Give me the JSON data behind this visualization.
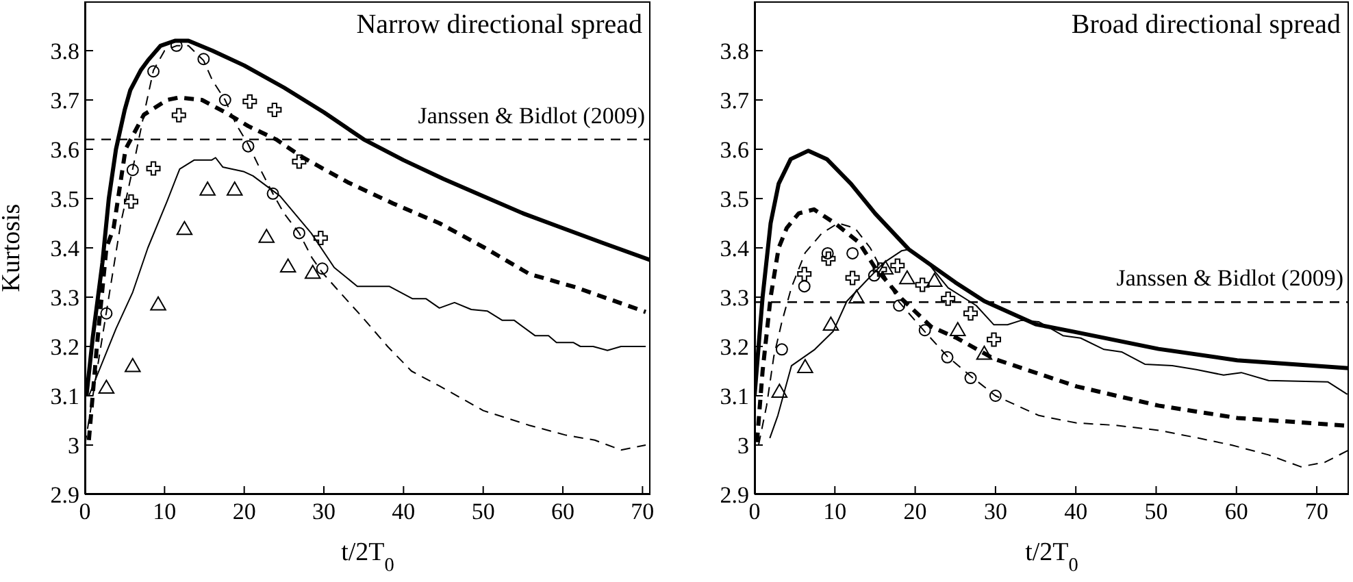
{
  "chart_data": [
    {
      "type": "line",
      "title": "Narrow directional spread",
      "xlabel": "t/2T$_{0}$",
      "ylabel": "Kurtosis",
      "xlim": [
        0,
        71
      ],
      "ylim": [
        2.9,
        3.9
      ],
      "xticks": [
        0,
        10,
        20,
        30,
        40,
        50,
        60,
        70
      ],
      "yticks": [
        2.9,
        3,
        3.1,
        3.2,
        3.3,
        3.4,
        3.5,
        3.6,
        3.7,
        3.8
      ],
      "ref_lines": [
        {
          "axis": "y",
          "value": 3.62,
          "label": "Janssen & Bidlot (2009)",
          "line_style": "dashed",
          "color": "#000000"
        }
      ],
      "series": [
        {
          "type": "line",
          "color": "#000000",
          "line_style": "solid",
          "marker": "none",
          "x": [
            0.2,
            1,
            2.2,
            3,
            3.9,
            5,
            5.7,
            7,
            7.9,
            9.5,
            11.3,
            13,
            16,
            20,
            25,
            30,
            35,
            40,
            45,
            50,
            55,
            60,
            65,
            71
          ],
          "values": [
            3.1,
            3.22,
            3.37,
            3.5,
            3.6,
            3.68,
            3.72,
            3.76,
            3.78,
            3.81,
            3.82,
            3.82,
            3.8,
            3.77,
            3.725,
            3.675,
            3.62,
            3.578,
            3.54,
            3.505,
            3.47,
            3.44,
            3.41,
            3.375
          ]
        },
        {
          "type": "line",
          "color": "#000000",
          "line_style": "dashed",
          "marker": "none",
          "x": [
            0.5,
            1.5,
            2.7,
            3.6,
            5.1,
            7.4,
            10.3,
            11.8,
            14.7,
            17.6,
            20.5,
            24,
            27.4,
            33,
            38.7,
            44.5,
            50.2,
            55.8,
            61.6,
            70.4
          ],
          "values": [
            3.01,
            3.2,
            3.4,
            3.44,
            3.6,
            3.67,
            3.7,
            3.705,
            3.7,
            3.675,
            3.647,
            3.62,
            3.583,
            3.533,
            3.49,
            3.45,
            3.4,
            3.347,
            3.32,
            3.27
          ]
        },
        {
          "type": "line",
          "color": "#000000",
          "line_style": "dashed",
          "marker": "none",
          "x": [
            0,
            1,
            2.7,
            4.5,
            6,
            7.4,
            8.6,
            10,
            11.5,
            13,
            14.9,
            16,
            17.6,
            19,
            20.5,
            22,
            23.6,
            25,
            26.9,
            28.5,
            29.8,
            32,
            34.8,
            38,
            41,
            44.5,
            50,
            55.8,
            60.4,
            64,
            67.3,
            70.4
          ],
          "values": [
            3.0,
            3.1,
            3.27,
            3.45,
            3.56,
            3.67,
            3.76,
            3.8,
            3.81,
            3.81,
            3.78,
            3.74,
            3.7,
            3.65,
            3.61,
            3.56,
            3.51,
            3.47,
            3.43,
            3.38,
            3.35,
            3.31,
            3.26,
            3.2,
            3.15,
            3.12,
            3.07,
            3.04,
            3.02,
            3.01,
            2.99,
            3.0
          ]
        },
        {
          "type": "line",
          "color": "#000000",
          "line_style": "solid",
          "marker": "none",
          "x": [
            0.5,
            3.9,
            6,
            7.9,
            10.3,
            11.9,
            13.7,
            15.9,
            16.4,
            17.3,
            19.9,
            21.1,
            24.5,
            28.4,
            31.3,
            34.2,
            38.2,
            41.1,
            42.8,
            44.5,
            46.4,
            48.5,
            50.5,
            52.4,
            53.9,
            56.5,
            58.2,
            59.2,
            61.3,
            62.2,
            63.8,
            65.6,
            67.3,
            70.4
          ],
          "values": [
            3.1,
            3.236,
            3.31,
            3.4,
            3.494,
            3.56,
            3.578,
            3.578,
            3.583,
            3.564,
            3.555,
            3.546,
            3.505,
            3.43,
            3.36,
            3.322,
            3.322,
            3.297,
            3.297,
            3.278,
            3.289,
            3.275,
            3.272,
            3.253,
            3.253,
            3.222,
            3.222,
            3.208,
            3.208,
            3.2,
            3.2,
            3.192,
            3.2,
            3.2
          ]
        },
        {
          "type": "scatter",
          "color": "#000000",
          "marker": "circle",
          "x": [
            2.7,
            6,
            8.6,
            11.5,
            14.9,
            17.6,
            20.5,
            23.6,
            26.9,
            29.8
          ],
          "values": [
            3.267,
            3.558,
            3.758,
            3.81,
            3.783,
            3.7,
            3.606,
            3.51,
            3.43,
            3.358
          ]
        },
        {
          "type": "scatter",
          "color": "#000000",
          "marker": "cross",
          "x": [
            5.8,
            8.6,
            11.8,
            20.7,
            23.8,
            26.9,
            29.6
          ],
          "values": [
            3.494,
            3.561,
            3.669,
            3.697,
            3.68,
            3.575,
            3.42
          ]
        },
        {
          "type": "scatter",
          "color": "#000000",
          "marker": "triangle",
          "x": [
            2.7,
            6,
            9.2,
            12.5,
            15.4,
            18.8,
            22.8,
            25.5,
            28.6
          ],
          "values": [
            3.114,
            3.158,
            3.283,
            3.436,
            3.516,
            3.516,
            3.42,
            3.36,
            3.347
          ]
        }
      ]
    },
    {
      "type": "line",
      "title": "Broad directional spread",
      "xlabel": "t/2T$_{0}$",
      "xlim": [
        0,
        74
      ],
      "ylim": [
        2.9,
        3.9
      ],
      "xticks": [
        0,
        10,
        20,
        30,
        40,
        50,
        60,
        70
      ],
      "yticks": [
        2.9,
        3,
        3.1,
        3.2,
        3.3,
        3.4,
        3.5,
        3.6,
        3.7,
        3.8
      ],
      "ref_lines": [
        {
          "axis": "y",
          "value": 3.29,
          "label": "Janssen & Bidlot (2009)",
          "line_style": "dashed",
          "color": "#000000"
        }
      ],
      "series": [
        {
          "type": "line",
          "color": "#000000",
          "line_style": "solid",
          "marker": "none",
          "x": [
            0,
            1,
            2,
            3,
            4.5,
            6.7,
            9,
            12,
            15,
            19.2,
            25,
            28.6,
            35,
            39.7,
            50.3,
            60.1,
            74
          ],
          "values": [
            3.1,
            3.3,
            3.45,
            3.53,
            3.58,
            3.597,
            3.58,
            3.53,
            3.47,
            3.397,
            3.33,
            3.292,
            3.245,
            3.23,
            3.195,
            3.172,
            3.156
          ]
        },
        {
          "type": "line",
          "color": "#000000",
          "line_style": "dashed",
          "marker": "none",
          "x": [
            0.3,
            1,
            2,
            3,
            4,
            5.5,
            7.4,
            10,
            13,
            15,
            18.3,
            22,
            25.2,
            29.8,
            40.1,
            50.3,
            60.1,
            74
          ],
          "values": [
            3.006,
            3.15,
            3.3,
            3.4,
            3.44,
            3.47,
            3.478,
            3.45,
            3.411,
            3.36,
            3.297,
            3.24,
            3.217,
            3.175,
            3.119,
            3.08,
            3.055,
            3.039
          ]
        },
        {
          "type": "line",
          "color": "#000000",
          "line_style": "dashed",
          "marker": "none",
          "x": [
            0.5,
            1.5,
            2.4,
            3.4,
            4.6,
            6.3,
            8.4,
            10.4,
            12.5,
            14.4,
            16,
            18,
            21.2,
            24,
            26.9,
            30,
            35.4,
            40,
            45,
            50.3,
            55,
            59.4,
            64,
            68,
            71,
            74
          ],
          "values": [
            3.0,
            3.08,
            3.18,
            3.25,
            3.32,
            3.39,
            3.43,
            3.45,
            3.44,
            3.4,
            3.35,
            3.29,
            3.23,
            3.18,
            3.14,
            3.1,
            3.06,
            3.045,
            3.04,
            3.03,
            3.015,
            3.0,
            2.98,
            2.956,
            2.965,
            2.99
          ]
        },
        {
          "type": "line",
          "color": "#000000",
          "line_style": "solid",
          "marker": "none",
          "x": [
            1.9,
            2.9,
            4.6,
            7.5,
            9.8,
            11.5,
            13.9,
            16.1,
            18.3,
            19.2,
            21.7,
            24.1,
            27.6,
            29.8,
            31.5,
            33.2,
            35.4,
            38.4,
            40.6,
            43.5,
            45.7,
            48.6,
            52,
            55,
            58.4,
            60.6,
            64,
            71.4,
            73.8
          ],
          "values": [
            3.014,
            3.06,
            3.161,
            3.194,
            3.231,
            3.292,
            3.333,
            3.37,
            3.394,
            3.397,
            3.367,
            3.319,
            3.283,
            3.244,
            3.244,
            3.253,
            3.25,
            3.222,
            3.217,
            3.194,
            3.189,
            3.164,
            3.161,
            3.153,
            3.142,
            3.147,
            3.131,
            3.128,
            3.103
          ]
        },
        {
          "type": "scatter",
          "color": "#000000",
          "marker": "circle",
          "x": [
            3.4,
            6.2,
            9.1,
            12.2,
            14.9,
            18,
            21.2,
            24,
            26.9,
            30
          ],
          "values": [
            3.194,
            3.322,
            3.389,
            3.389,
            3.344,
            3.283,
            3.233,
            3.178,
            3.136,
            3.1
          ]
        },
        {
          "type": "scatter",
          "color": "#000000",
          "marker": "cross",
          "x": [
            6.2,
            9.2,
            12.2,
            15.6,
            17.8,
            20.9,
            24.1,
            26.9,
            29.8
          ],
          "values": [
            3.347,
            3.378,
            3.339,
            3.356,
            3.364,
            3.325,
            3.297,
            3.267,
            3.214
          ]
        },
        {
          "type": "scatter",
          "color": "#000000",
          "marker": "triangle",
          "x": [
            3.1,
            6.3,
            9.5,
            12.7,
            16.3,
            19,
            22.4,
            25.3,
            28.6
          ],
          "values": [
            3.106,
            3.156,
            3.242,
            3.297,
            3.356,
            3.336,
            3.331,
            3.231,
            3.183
          ]
        }
      ]
    }
  ]
}
